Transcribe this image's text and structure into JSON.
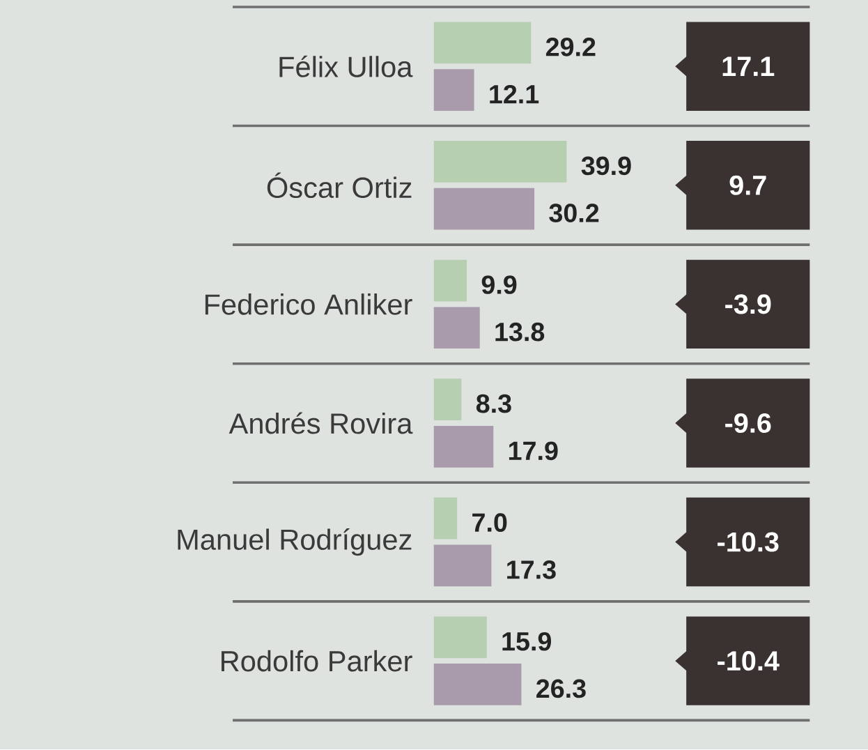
{
  "chart_data": {
    "type": "bar",
    "orientation": "horizontal",
    "categories": [
      "Félix Ulloa",
      "Óscar Ortiz",
      "Federico Anliker",
      "Andrés Rovira",
      "Manuel Rodríguez",
      "Rodolfo Parker"
    ],
    "series": [
      {
        "color": "#b6cfb0",
        "values": [
          29.2,
          39.9,
          9.9,
          8.3,
          7.0,
          15.9
        ],
        "value_labels": [
          "29.2",
          "39.9",
          "9.9",
          "8.3",
          "7.0",
          "15.9"
        ]
      },
      {
        "color": "#a99bac",
        "values": [
          12.1,
          30.2,
          13.8,
          17.9,
          17.3,
          26.3
        ],
        "value_labels": [
          "12.1",
          "30.2",
          "13.8",
          "17.9",
          "17.3",
          "26.3"
        ]
      }
    ],
    "annotations": [
      "17.1",
      "9.7",
      "-3.9",
      "-9.6",
      "-10.3",
      "-10.4"
    ]
  }
}
